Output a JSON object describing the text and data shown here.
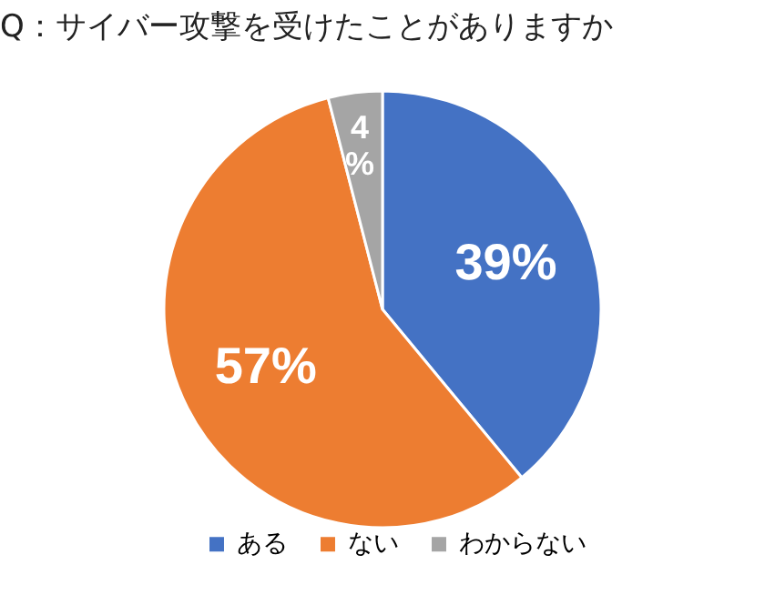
{
  "chart_data": {
    "type": "pie",
    "title": "Q：サイバー攻撃を受けたことがありますか",
    "categories": [
      "ある",
      "ない",
      "わからない"
    ],
    "values": [
      39,
      57,
      4
    ],
    "colors": [
      "#4472c4",
      "#ed7d31",
      "#a5a5a5"
    ],
    "value_labels": [
      "39%",
      "57%",
      "4%"
    ],
    "legend": "bottom"
  }
}
